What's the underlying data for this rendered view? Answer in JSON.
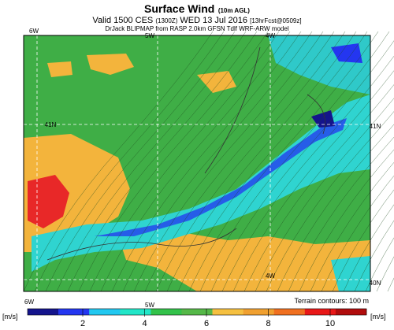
{
  "header": {
    "title": "Surface Wind",
    "title_note": "(10m AGL)",
    "valid": "Valid 1500 CES",
    "valid_utc": "(1300Z)",
    "date": "WED 13 Jul 2016",
    "forecast": "[13hrFcst@0509z]",
    "source": "DrJack BLIPMAP from RASP 2.0km GFSN Tdlf WRF-ARW model"
  },
  "map": {
    "labels": [
      "6W",
      "5W",
      "4W",
      "41N",
      "41N",
      "40N",
      "4W",
      "6W",
      "5W"
    ]
  },
  "footer": {
    "terrain": "Terrain contours: 100 m"
  },
  "legend": {
    "unit": "[m/s]",
    "ticks": [
      2,
      4,
      6,
      8,
      10
    ],
    "colors": [
      "#14148c",
      "#2436f0",
      "#22c8f0",
      "#22e6c8",
      "#33c24a",
      "#55b848",
      "#f5c040",
      "#f0a030",
      "#f07020",
      "#e81818",
      "#b00c0c"
    ]
  }
}
